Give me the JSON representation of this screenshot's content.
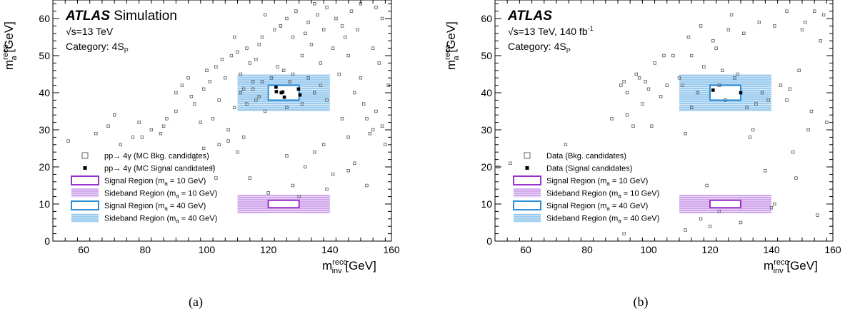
{
  "panels": [
    {
      "caption": "(a)",
      "atlas": "ATLAS",
      "atlas_suffix": "Simulation",
      "energy": "√s=13 TeV",
      "category_main": "Category: 4S",
      "category_sub": "P",
      "legend": [
        "pp→ 4γ (MC Bkg. candidates)",
        "pp→ 4γ (MC Signal candidates)",
        "Signal Region (m",
        "Sideband Region (m",
        "Signal Region (m",
        "Sideband Region (m"
      ],
      "legend_suffix": [
        "",
        "",
        " = 10 GeV)",
        " = 10 GeV)",
        " = 40 GeV)",
        " = 40 GeV)"
      ]
    },
    {
      "caption": "(b)",
      "atlas": "ATLAS",
      "atlas_suffix": "",
      "energy": "√s=13 TeV, 140 fb",
      "energy_sup": "-1",
      "category_main": "Category: 4S",
      "category_sub": "P",
      "legend": [
        "Data (Bkg. candidates)",
        "Data (Signal candidates)",
        "Signal Region (m",
        "Sideband Region (m",
        "Signal Region (m",
        "Sideband Region (m"
      ],
      "legend_suffix": [
        "",
        "",
        " = 10 GeV)",
        " = 10 GeV)",
        " = 40 GeV)",
        " = 40 GeV)"
      ]
    }
  ],
  "axis": {
    "x_label_m": "m",
    "x_label_sup": "reco",
    "x_label_sub": "inv",
    "x_label_unit": " [GeV]",
    "y_label_m": "m",
    "y_label_sup": "reco",
    "y_label_sub": "a",
    "y_label_unit": " [GeV]",
    "a_sub": "a"
  },
  "colors": {
    "purple": "#9932cc",
    "blue": "#2e8fd6",
    "hatch_purple": "#b46ee0",
    "hatch_blue": "#5aaae6",
    "marker": "#555555"
  },
  "chart_data": [
    {
      "type": "scatter",
      "xlabel": "m_inv^reco [GeV]",
      "ylabel": "m_a^reco [GeV]",
      "xlim": [
        50,
        160
      ],
      "ylim": [
        0,
        65
      ],
      "xticks": [
        60,
        80,
        100,
        120,
        140,
        160
      ],
      "yticks": [
        0,
        10,
        20,
        30,
        40,
        50,
        60
      ],
      "regions": {
        "signal_10": {
          "x": [
            120,
            130
          ],
          "y": [
            9,
            11
          ]
        },
        "sideband_10": {
          "x": [
            110,
            140
          ],
          "y": [
            7.5,
            12.5
          ]
        },
        "signal_40": {
          "x": [
            120,
            130
          ],
          "y": [
            38,
            42
          ]
        },
        "sideband_40": {
          "x": [
            110,
            140
          ],
          "y": [
            35,
            45
          ]
        }
      },
      "series": [
        {
          "name": "pp→ 4γ (MC Bkg. candidates)",
          "marker": "open-square",
          "points": [
            [
              55,
              27
            ],
            [
              64,
              29
            ],
            [
              68,
              31
            ],
            [
              70,
              34
            ],
            [
              72,
              26
            ],
            [
              76,
              28
            ],
            [
              79,
              28
            ],
            [
              82,
              30
            ],
            [
              86,
              31
            ],
            [
              87,
              33
            ],
            [
              90,
              40
            ],
            [
              92,
              42
            ],
            [
              94,
              44
            ],
            [
              95,
              39
            ],
            [
              96,
              37
            ],
            [
              98,
              32
            ],
            [
              99,
              41
            ],
            [
              100,
              46
            ],
            [
              101,
              43
            ],
            [
              102,
              33
            ],
            [
              103,
              47
            ],
            [
              104,
              38
            ],
            [
              105,
              49
            ],
            [
              106,
              44
            ],
            [
              107,
              30
            ],
            [
              108,
              50
            ],
            [
              109,
              36
            ],
            [
              110,
              51
            ],
            [
              111,
              45
            ],
            [
              112,
              41
            ],
            [
              113,
              52
            ],
            [
              114,
              48
            ],
            [
              115,
              43
            ],
            [
              116,
              38
            ],
            [
              117,
              53
            ],
            [
              118,
              55
            ],
            [
              119,
              35
            ],
            [
              121,
              44
            ],
            [
              122,
              57
            ],
            [
              123,
              47
            ],
            [
              124,
              58
            ],
            [
              125,
              46
            ],
            [
              126,
              60
            ],
            [
              127,
              43
            ],
            [
              128,
              55
            ],
            [
              129,
              62
            ],
            [
              131,
              50
            ],
            [
              132,
              56
            ],
            [
              133,
              59
            ],
            [
              134,
              53
            ],
            [
              135,
              64
            ],
            [
              136,
              61
            ],
            [
              137,
              48
            ],
            [
              138,
              57
            ],
            [
              139,
              63
            ],
            [
              141,
              52
            ],
            [
              142,
              60
            ],
            [
              143,
              45
            ],
            [
              144,
              58
            ],
            [
              145,
              55
            ],
            [
              146,
              50
            ],
            [
              147,
              62
            ],
            [
              148,
              40
            ],
            [
              149,
              57
            ],
            [
              150,
              44
            ],
            [
              151,
              37
            ],
            [
              152,
              33
            ],
            [
              153,
              29
            ],
            [
              154,
              52
            ],
            [
              155,
              35
            ],
            [
              156,
              48
            ],
            [
              157,
              31
            ],
            [
              158,
              26
            ],
            [
              159,
              42
            ],
            [
              157,
              60
            ],
            [
              155,
              63
            ],
            [
              150,
              64
            ],
            [
              146,
              28
            ],
            [
              144,
              33
            ],
            [
              141,
              18
            ],
            [
              126,
              23
            ],
            [
              114,
              17
            ],
            [
              112,
              28
            ],
            [
              104,
              26
            ],
            [
              102,
              20
            ],
            [
              96,
              22
            ],
            [
              99,
              25
            ],
            [
              107,
              27
            ],
            [
              132,
              20
            ],
            [
              128,
              15
            ],
            [
              120,
              13
            ],
            [
              135,
              24
            ],
            [
              138,
              26
            ],
            [
              146,
              19
            ],
            [
              148,
              21
            ],
            [
              152,
              15
            ],
            [
              154,
              30
            ],
            [
              90,
              35
            ],
            [
              85,
              29
            ],
            [
              78,
              32
            ],
            [
              111,
              40
            ],
            [
              113,
              37
            ],
            [
              115,
              41
            ],
            [
              117,
              39
            ],
            [
              131,
              37
            ],
            [
              133,
              44
            ],
            [
              135,
              40
            ],
            [
              137,
              42
            ],
            [
              139,
              38
            ],
            [
              118,
              43
            ],
            [
              128,
              45
            ],
            [
              126,
              36
            ],
            [
              130,
              12
            ],
            [
              124,
              58
            ],
            [
              116,
              49
            ],
            [
              109,
              55
            ],
            [
              119,
              61
            ],
            [
              110,
              24
            ],
            [
              103,
              17
            ],
            [
              139,
              14
            ]
          ]
        },
        {
          "name": "pp→ 4γ (MC Signal candidates)",
          "marker": "filled-square",
          "points": [
            [
              122.5,
              41.5
            ],
            [
              122.6,
              40.3
            ],
            [
              124.2,
              40.0
            ],
            [
              124.7,
              40.2
            ],
            [
              125.2,
              38.8
            ],
            [
              129.8,
              41.0
            ],
            [
              130.3,
              39.4
            ]
          ]
        }
      ]
    },
    {
      "type": "scatter",
      "xlabel": "m_inv^reco [GeV]",
      "ylabel": "m_a^reco [GeV]",
      "xlim": [
        50,
        160
      ],
      "ylim": [
        0,
        65
      ],
      "xticks": [
        60,
        80,
        100,
        120,
        140,
        160
      ],
      "yticks": [
        0,
        10,
        20,
        30,
        40,
        50,
        60
      ],
      "regions": {
        "signal_10": {
          "x": [
            120,
            130
          ],
          "y": [
            9,
            11
          ]
        },
        "sideband_10": {
          "x": [
            110,
            140
          ],
          "y": [
            7.5,
            12.5
          ]
        },
        "signal_40": {
          "x": [
            120,
            130
          ],
          "y": [
            38,
            42
          ]
        },
        "sideband_40": {
          "x": [
            110,
            140
          ],
          "y": [
            35,
            45
          ]
        }
      },
      "series": [
        {
          "name": "Data (Bkg. candidates)",
          "marker": "open-square",
          "points": [
            [
              51,
              20
            ],
            [
              73,
              26
            ],
            [
              88,
              33
            ],
            [
              91,
              42
            ],
            [
              92,
              43
            ],
            [
              93,
              34
            ],
            [
              95,
              31
            ],
            [
              96,
              45
            ],
            [
              97,
              44
            ],
            [
              98,
              37
            ],
            [
              99,
              43
            ],
            [
              100,
              41
            ],
            [
              102,
              48
            ],
            [
              104,
              39
            ],
            [
              105,
              50
            ],
            [
              106,
              42
            ],
            [
              108,
              50
            ],
            [
              110,
              44
            ],
            [
              111,
              42
            ],
            [
              112,
              29
            ],
            [
              113,
              55
            ],
            [
              114,
              36
            ],
            [
              116,
              40
            ],
            [
              117,
              58
            ],
            [
              118,
              47
            ],
            [
              119,
              15
            ],
            [
              121,
              54
            ],
            [
              122,
              52
            ],
            [
              123,
              42
            ],
            [
              124,
              46
            ],
            [
              125,
              38
            ],
            [
              126,
              57
            ],
            [
              127,
              61
            ],
            [
              128,
              44
            ],
            [
              129,
              45
            ],
            [
              131,
              56
            ],
            [
              132,
              36
            ],
            [
              133,
              28
            ],
            [
              134,
              30
            ],
            [
              135,
              37
            ],
            [
              136,
              59
            ],
            [
              137,
              40
            ],
            [
              138,
              19
            ],
            [
              140,
              9
            ],
            [
              141,
              10
            ],
            [
              143,
              42
            ],
            [
              145,
              38
            ],
            [
              146,
              41
            ],
            [
              147,
              24
            ],
            [
              148,
              17
            ],
            [
              149,
              46
            ],
            [
              150,
              57
            ],
            [
              151,
              59
            ],
            [
              152,
              30
            ],
            [
              153,
              35
            ],
            [
              154,
              62
            ],
            [
              155,
              7
            ],
            [
              156,
              54
            ],
            [
              157,
              61
            ],
            [
              158,
              32
            ],
            [
              145,
              62
            ],
            [
              141,
              58
            ],
            [
              139,
              38
            ],
            [
              120,
              4
            ],
            [
              112,
              3
            ],
            [
              117,
              6
            ],
            [
              123,
              8
            ],
            [
              130,
              5
            ],
            [
              92,
              2
            ],
            [
              55,
              21
            ],
            [
              114,
              50
            ],
            [
              101,
              31
            ],
            [
              93,
              40
            ]
          ]
        },
        {
          "name": "Data (Signal candidates)",
          "marker": "filled-square",
          "points": [
            [
              121,
              40.7
            ],
            [
              130,
              40
            ]
          ]
        }
      ]
    }
  ]
}
